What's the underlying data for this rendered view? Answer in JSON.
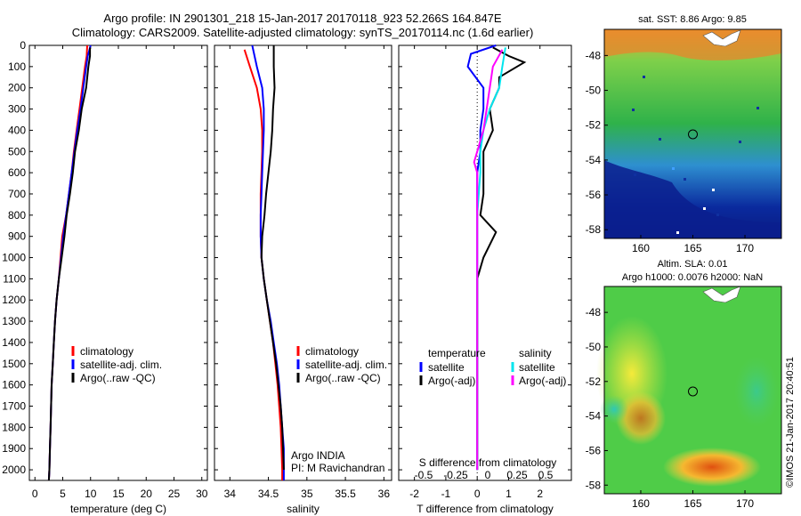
{
  "header": {
    "line1": "Argo profile: IN 2901301_218 15-Jan-2017 20170118_923 52.266S 164.847E",
    "line2": "Climatology: CARS2009. Satellite-adjusted climatology: synTS_20170114.nc (1.6d earlier)"
  },
  "colors": {
    "climatology": "#ff0000",
    "satellite": "#0000ff",
    "argo": "#000000",
    "salinity_satellite": "#00e5ee",
    "salinity_argo": "#ff00ff"
  },
  "chart_data": [
    {
      "type": "line",
      "panel": "temperature",
      "xlabel": "temperature (deg C)",
      "ylim": [
        2050,
        0
      ],
      "xlim": [
        -1,
        31
      ],
      "xticks": [
        0,
        5,
        10,
        15,
        20,
        25,
        30
      ],
      "yticks": [
        0,
        100,
        200,
        300,
        400,
        500,
        600,
        700,
        800,
        900,
        1000,
        1100,
        1200,
        1300,
        1400,
        1500,
        1600,
        1700,
        1800,
        1900,
        2000
      ],
      "legend": [
        "climatology",
        "satellite-adj. clim.",
        "Argo(..raw -QC)"
      ],
      "series": [
        {
          "name": "climatology",
          "color": "#ff0000",
          "points": [
            [
              9.4,
              0
            ],
            [
              9.3,
              50
            ],
            [
              9.0,
              100
            ],
            [
              8.5,
              200
            ],
            [
              8.0,
              300
            ],
            [
              7.5,
              400
            ],
            [
              7.0,
              500
            ],
            [
              6.6,
              600
            ],
            [
              6.1,
              700
            ],
            [
              5.6,
              800
            ],
            [
              4.9,
              900
            ],
            [
              4.6,
              1000
            ],
            [
              4.3,
              1100
            ],
            [
              3.9,
              1200
            ],
            [
              3.6,
              1300
            ],
            [
              3.4,
              1400
            ],
            [
              3.2,
              1500
            ],
            [
              3.0,
              1600
            ],
            [
              2.9,
              1700
            ],
            [
              2.8,
              1800
            ],
            [
              2.7,
              1900
            ],
            [
              2.6,
              2000
            ],
            [
              2.5,
              2050
            ]
          ]
        },
        {
          "name": "satellite-adj. clim.",
          "color": "#0000ff",
          "points": [
            [
              10.0,
              0
            ],
            [
              9.5,
              50
            ],
            [
              9.2,
              100
            ],
            [
              8.7,
              200
            ],
            [
              8.2,
              300
            ],
            [
              7.6,
              400
            ],
            [
              7.1,
              500
            ],
            [
              6.6,
              600
            ],
            [
              6.1,
              700
            ],
            [
              5.6,
              800
            ],
            [
              5.1,
              900
            ],
            [
              4.7,
              1000
            ],
            [
              4.3,
              1100
            ],
            [
              3.9,
              1200
            ],
            [
              3.6,
              1300
            ],
            [
              3.4,
              1400
            ],
            [
              3.2,
              1500
            ],
            [
              3.0,
              1600
            ],
            [
              2.9,
              1700
            ],
            [
              2.8,
              1800
            ],
            [
              2.7,
              1900
            ],
            [
              2.6,
              2000
            ],
            [
              2.5,
              2050
            ]
          ]
        },
        {
          "name": "Argo(..raw -QC)",
          "color": "#000000",
          "points": [
            [
              9.9,
              10
            ],
            [
              9.9,
              50
            ],
            [
              9.6,
              100
            ],
            [
              9.2,
              200
            ],
            [
              8.4,
              300
            ],
            [
              7.9,
              400
            ],
            [
              7.2,
              500
            ],
            [
              6.8,
              600
            ],
            [
              6.3,
              700
            ],
            [
              5.7,
              800
            ],
            [
              5.3,
              900
            ],
            [
              4.8,
              1000
            ],
            [
              4.3,
              1100
            ],
            [
              3.9,
              1200
            ],
            [
              3.6,
              1300
            ],
            [
              3.4,
              1400
            ],
            [
              3.2,
              1500
            ],
            [
              3.0,
              1600
            ],
            [
              2.9,
              1700
            ],
            [
              2.8,
              1800
            ],
            [
              2.7,
              1900
            ],
            [
              2.6,
              2000
            ],
            [
              2.5,
              2050
            ]
          ]
        }
      ]
    },
    {
      "type": "line",
      "panel": "salinity",
      "xlabel": "salinity",
      "ylim": [
        2050,
        0
      ],
      "xlim": [
        33.8,
        36.1
      ],
      "xticks": [
        34,
        34.5,
        35,
        35.5,
        36
      ],
      "legend": [
        "climatology",
        "satellite-adj. clim.",
        "Argo(..raw -QC)"
      ],
      "annotation": [
        "Argo INDIA",
        "PI: M Ravichandran"
      ],
      "series": [
        {
          "name": "climatology",
          "color": "#ff0000",
          "points": [
            [
              34.19,
              20
            ],
            [
              34.26,
              100
            ],
            [
              34.35,
              200
            ],
            [
              34.4,
              300
            ],
            [
              34.42,
              400
            ],
            [
              34.42,
              500
            ],
            [
              34.41,
              600
            ],
            [
              34.4,
              700
            ],
            [
              34.4,
              800
            ],
            [
              34.4,
              900
            ],
            [
              34.41,
              1000
            ],
            [
              34.44,
              1100
            ],
            [
              34.48,
              1200
            ],
            [
              34.52,
              1300
            ],
            [
              34.56,
              1400
            ],
            [
              34.59,
              1500
            ],
            [
              34.62,
              1600
            ],
            [
              34.64,
              1700
            ],
            [
              34.66,
              1800
            ],
            [
              34.67,
              1900
            ],
            [
              34.68,
              2000
            ],
            [
              34.68,
              2050
            ]
          ]
        },
        {
          "name": "satellite-adj. clim.",
          "color": "#0000ff",
          "points": [
            [
              34.29,
              0
            ],
            [
              34.35,
              100
            ],
            [
              34.42,
              200
            ],
            [
              34.44,
              300
            ],
            [
              34.44,
              400
            ],
            [
              34.43,
              500
            ],
            [
              34.42,
              600
            ],
            [
              34.41,
              700
            ],
            [
              34.4,
              800
            ],
            [
              34.4,
              900
            ],
            [
              34.41,
              1000
            ],
            [
              34.44,
              1100
            ],
            [
              34.48,
              1200
            ],
            [
              34.53,
              1300
            ],
            [
              34.57,
              1400
            ],
            [
              34.61,
              1500
            ],
            [
              34.64,
              1600
            ],
            [
              34.66,
              1700
            ],
            [
              34.68,
              1800
            ],
            [
              34.7,
              1900
            ],
            [
              34.7,
              2000
            ],
            [
              34.7,
              2050
            ]
          ]
        },
        {
          "name": "Argo(..raw -QC)",
          "color": "#000000",
          "points": [
            [
              34.57,
              0
            ],
            [
              34.57,
              100
            ],
            [
              34.58,
              200
            ],
            [
              34.56,
              300
            ],
            [
              34.55,
              400
            ],
            [
              34.53,
              500
            ],
            [
              34.5,
              600
            ],
            [
              34.47,
              700
            ],
            [
              34.45,
              800
            ],
            [
              34.42,
              900
            ],
            [
              34.41,
              1000
            ],
            [
              34.44,
              1100
            ],
            [
              34.48,
              1200
            ],
            [
              34.52,
              1300
            ],
            [
              34.56,
              1400
            ],
            [
              34.6,
              1500
            ],
            [
              34.63,
              1600
            ],
            [
              34.66,
              1700
            ],
            [
              34.68,
              1800
            ],
            [
              34.69,
              1900
            ],
            [
              34.7,
              2000
            ]
          ]
        }
      ]
    },
    {
      "type": "line",
      "panel": "difference",
      "xlabel": "T difference from climatology",
      "xlabel_top": "S difference from climatology",
      "xlim": [
        -2.5,
        3.0
      ],
      "xticks": [
        -2,
        -1,
        0,
        1,
        2
      ],
      "xticks_top": [
        "-0.5",
        "-0.25",
        "0",
        "0.25",
        "0.5"
      ],
      "legend_temperature": {
        "title": "temperature",
        "items": [
          "satellite",
          "Argo(-adj)"
        ]
      },
      "legend_salinity": {
        "title": "salinity",
        "items": [
          "satellite",
          "Argo(-adj)"
        ]
      },
      "series": [
        {
          "name": "temperature satellite",
          "color": "#0000ff",
          "points": [
            [
              0.6,
              0
            ],
            [
              -0.2,
              40
            ],
            [
              -0.3,
              100
            ],
            [
              0.2,
              200
            ],
            [
              0.2,
              300
            ],
            [
              0.1,
              400
            ],
            [
              0.1,
              500
            ],
            [
              0.0,
              600
            ],
            [
              0.0,
              800
            ],
            [
              0.0,
              1000
            ],
            [
              0.0,
              1500
            ],
            [
              0.0,
              2000
            ]
          ]
        },
        {
          "name": "temperature Argo(-adj)",
          "color": "#000000",
          "points": [
            [
              0.5,
              10
            ],
            [
              1.0,
              50
            ],
            [
              1.5,
              80
            ],
            [
              0.7,
              150
            ],
            [
              0.7,
              200
            ],
            [
              0.4,
              300
            ],
            [
              0.5,
              400
            ],
            [
              0.2,
              500
            ],
            [
              0.2,
              600
            ],
            [
              0.2,
              700
            ],
            [
              0.1,
              800
            ],
            [
              0.6,
              880
            ],
            [
              0.2,
              1000
            ],
            [
              0.0,
              1100
            ],
            [
              0.0,
              1400
            ],
            [
              0.0,
              2000
            ]
          ]
        },
        {
          "name": "salinity satellite",
          "color": "#00e5ee",
          "points": [
            [
              0.9,
              10
            ],
            [
              0.8,
              100
            ],
            [
              0.7,
              200
            ],
            [
              0.4,
              300
            ],
            [
              0.2,
              400
            ],
            [
              0.1,
              500
            ],
            [
              0.1,
              600
            ],
            [
              0.0,
              800
            ],
            [
              0.0,
              1000
            ],
            [
              0.0,
              1500
            ],
            [
              0.0,
              2000
            ]
          ]
        },
        {
          "name": "salinity Argo(-adj)",
          "color": "#ff00ff",
          "points": [
            [
              0.8,
              20
            ],
            [
              0.5,
              100
            ],
            [
              0.4,
              200
            ],
            [
              0.3,
              300
            ],
            [
              0.2,
              400
            ],
            [
              -0.1,
              550
            ],
            [
              0.0,
              600
            ],
            [
              0.0,
              700
            ],
            [
              0.0,
              800
            ],
            [
              0.0,
              1000
            ],
            [
              0.0,
              1500
            ],
            [
              0.0,
              2000
            ]
          ]
        }
      ]
    },
    {
      "type": "heatmap",
      "panel": "sst-map",
      "title": "sat. SST: 8.86 Argo: 9.85",
      "xticks": [
        160,
        165,
        170
      ],
      "yticks": [
        -48,
        -50,
        -52,
        -54,
        -56,
        -58
      ],
      "xlim": [
        156.5,
        173.5
      ],
      "ylim": [
        -58.5,
        -46.5
      ],
      "argo_position": [
        164.847,
        -52.266
      ]
    },
    {
      "type": "heatmap",
      "panel": "sla-map",
      "title": "Altim. SLA: 0.01",
      "subtitle": "Argo h1000: 0.0076 h2000: NaN",
      "xticks": [
        160,
        165,
        170
      ],
      "yticks": [
        -48,
        -50,
        -52,
        -54,
        -56,
        -58
      ],
      "xlim": [
        156.5,
        173.5
      ],
      "ylim": [
        -58.5,
        -46.5
      ],
      "argo_position": [
        164.847,
        -52.266
      ]
    }
  ],
  "credit": "©IMOS 21-Jan-2017 20:40:51"
}
